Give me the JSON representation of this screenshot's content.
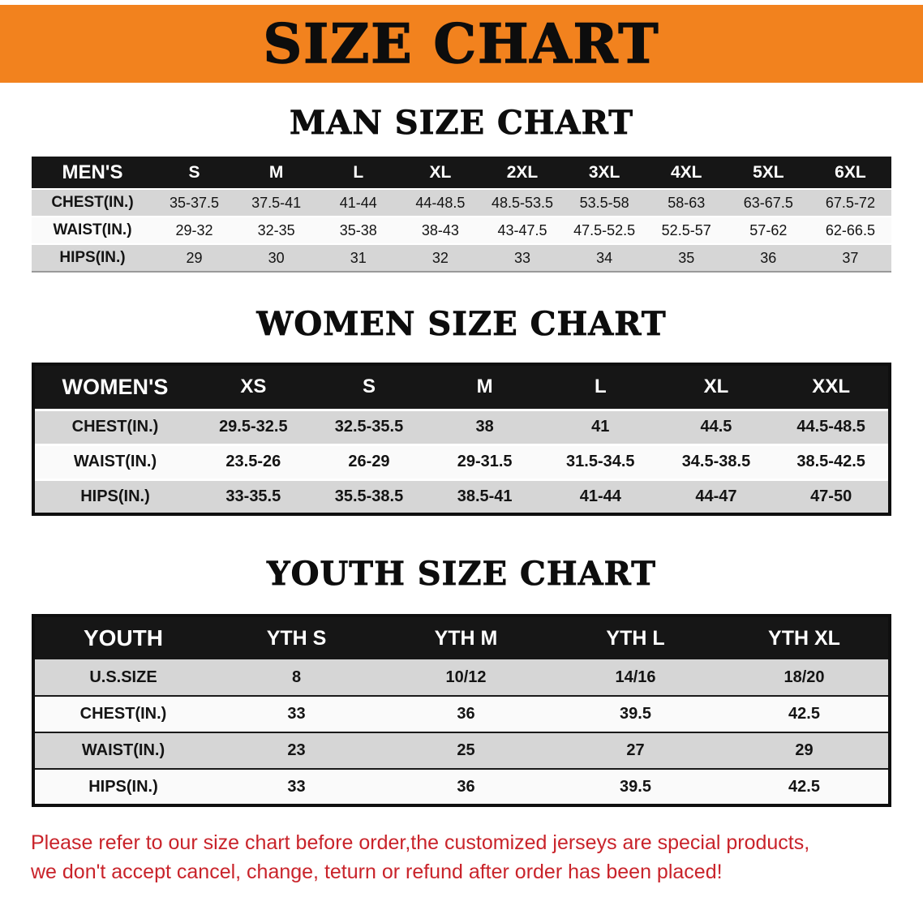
{
  "banner": {
    "title": "SIZE CHART"
  },
  "colors": {
    "banner_bg": "#f2821e",
    "table_header_bg": "#161616",
    "row_gray": "#d6d6d6",
    "note_red": "#c9232a"
  },
  "sections": [
    {
      "id": "men",
      "heading": "MAN SIZE CHART",
      "table": {
        "header_label": "MEN'S",
        "columns": [
          "S",
          "M",
          "L",
          "XL",
          "2XL",
          "3XL",
          "4XL",
          "5XL",
          "6XL"
        ],
        "rows": [
          {
            "label": "CHEST(IN.)",
            "values": [
              "35-37.5",
              "37.5-41",
              "41-44",
              "44-48.5",
              "48.5-53.5",
              "53.5-58",
              "58-63",
              "63-67.5",
              "67.5-72"
            ]
          },
          {
            "label": "WAIST(IN.)",
            "values": [
              "29-32",
              "32-35",
              "35-38",
              "38-43",
              "43-47.5",
              "47.5-52.5",
              "52.5-57",
              "57-62",
              "62-66.5"
            ]
          },
          {
            "label": "HIPS(IN.)",
            "values": [
              "29",
              "30",
              "31",
              "32",
              "33",
              "34",
              "35",
              "36",
              "37"
            ]
          }
        ]
      }
    },
    {
      "id": "women",
      "heading": "WOMEN SIZE CHART",
      "table": {
        "header_label": "WOMEN'S",
        "columns": [
          "XS",
          "S",
          "M",
          "L",
          "XL",
          "XXL"
        ],
        "rows": [
          {
            "label": "CHEST(IN.)",
            "values": [
              "29.5-32.5",
              "32.5-35.5",
              "38",
              "41",
              "44.5",
              "44.5-48.5"
            ]
          },
          {
            "label": "WAIST(IN.)",
            "values": [
              "23.5-26",
              "26-29",
              "29-31.5",
              "31.5-34.5",
              "34.5-38.5",
              "38.5-42.5"
            ]
          },
          {
            "label": "HIPS(IN.)",
            "values": [
              "33-35.5",
              "35.5-38.5",
              "38.5-41",
              "41-44",
              "44-47",
              "47-50"
            ]
          }
        ]
      }
    },
    {
      "id": "youth",
      "heading": "YOUTH SIZE CHART",
      "table": {
        "header_label": "YOUTH",
        "columns": [
          "YTH S",
          "YTH M",
          "YTH L",
          "YTH XL"
        ],
        "rows": [
          {
            "label": "U.S.SIZE",
            "values": [
              "8",
              "10/12",
              "14/16",
              "18/20"
            ]
          },
          {
            "label": "CHEST(IN.)",
            "values": [
              "33",
              "36",
              "39.5",
              "42.5"
            ]
          },
          {
            "label": "WAIST(IN.)",
            "values": [
              "23",
              "25",
              "27",
              "29"
            ]
          },
          {
            "label": "HIPS(IN.)",
            "values": [
              "33",
              "36",
              "39.5",
              "42.5"
            ]
          }
        ]
      }
    }
  ],
  "note": {
    "line1": "Please refer to our size chart before order,the customized jerseys are special products,",
    "line2": "we don't accept cancel, change, teturn or refund after order has been placed!"
  }
}
